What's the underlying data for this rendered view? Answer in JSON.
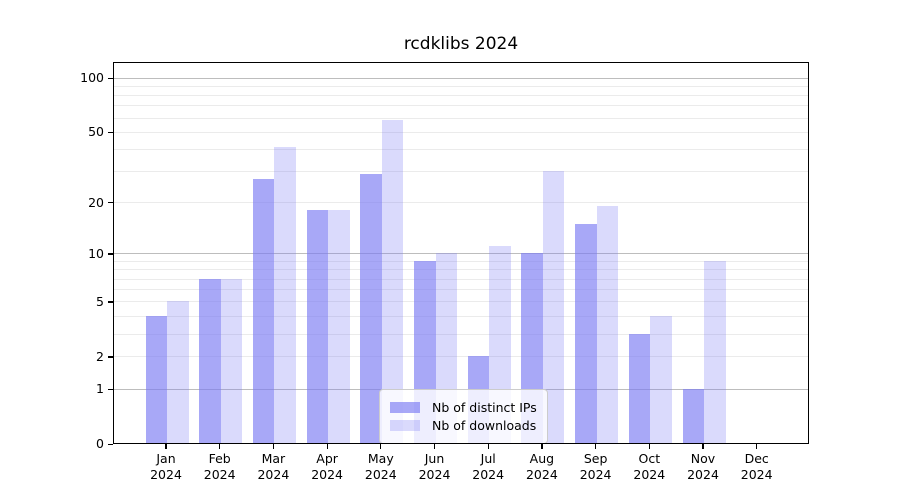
{
  "title": "rcdklibs 2024",
  "chart_data": {
    "type": "bar",
    "title": "rcdklibs 2024",
    "y_scale": "log1p",
    "categories": [
      "Jan",
      "Feb",
      "Mar",
      "Apr",
      "May",
      "Jun",
      "Jul",
      "Aug",
      "Sep",
      "Oct",
      "Nov",
      "Dec"
    ],
    "x_year": "2024",
    "series": [
      {
        "name": "Nb of distinct IPs",
        "color": "rgba(122,122,243,0.65)",
        "values": [
          4,
          7,
          27,
          18,
          29,
          9,
          2,
          10,
          15,
          3,
          1,
          0
        ]
      },
      {
        "name": "Nb of downloads",
        "color": "rgba(122,122,243,0.28)",
        "values": [
          5,
          7,
          41,
          18,
          58,
          10,
          11,
          30,
          19,
          4,
          9,
          0
        ]
      }
    ],
    "y_ticks": [
      0,
      1,
      2,
      5,
      10,
      20,
      50,
      100
    ],
    "minor_gridlines": [
      2,
      3,
      4,
      5,
      6,
      7,
      8,
      9,
      20,
      30,
      40,
      50,
      60,
      70,
      80,
      90
    ],
    "major_gridlines": [
      1,
      10,
      100
    ],
    "ylim": [
      0,
      124
    ],
    "legend_position": "lower center",
    "grid": true,
    "colors": {
      "grid_minor": "#ebebeb",
      "grid_major": "#bdbdbd",
      "axis": "#000000",
      "text": "#000000"
    }
  }
}
